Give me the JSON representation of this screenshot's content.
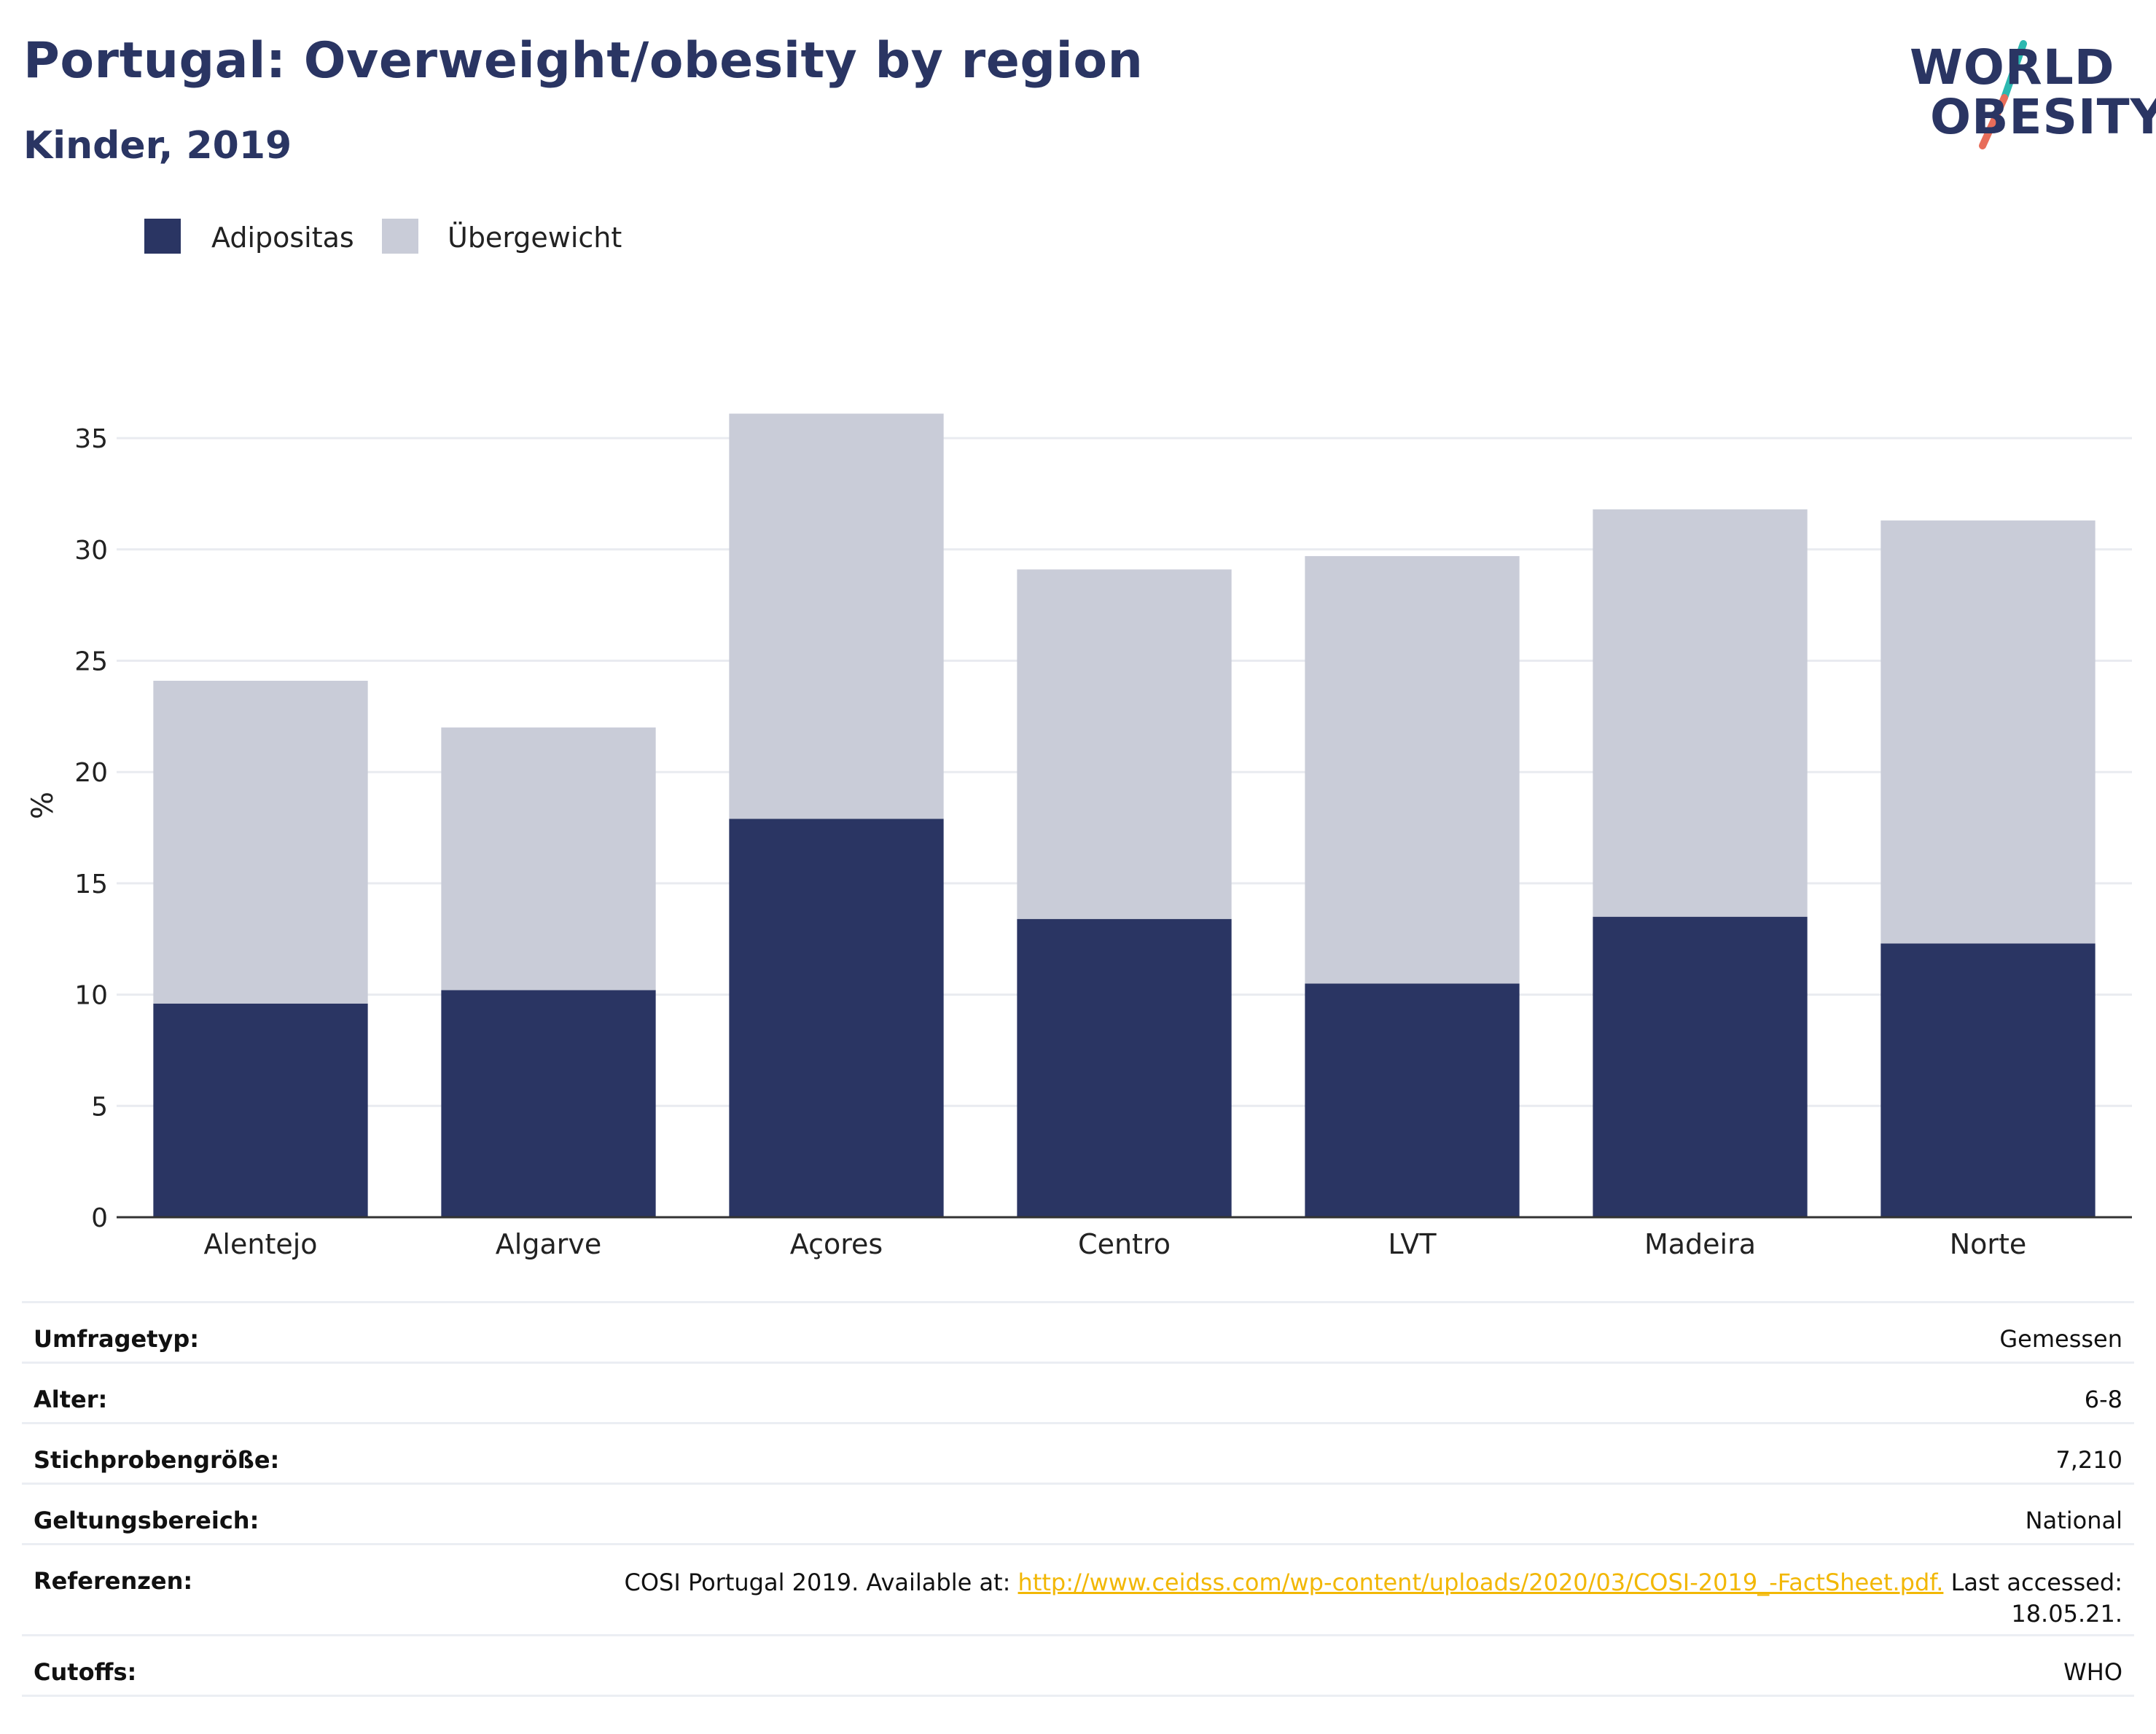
{
  "header": {
    "title": "Portugal: Overweight/obesity by region",
    "subtitle": "Kinder, 2019"
  },
  "logo": {
    "line1": "WORLD",
    "line2": "OBESITY",
    "slash_colors": [
      "#2cb8b0",
      "#e86d5a"
    ]
  },
  "colors": {
    "adipositas": "#2a3563",
    "uebergewicht": "#c9ccd8",
    "grid": "#e9ebf0",
    "axis": "#333333",
    "link": "#f2b705"
  },
  "chart_data": {
    "type": "bar",
    "stacked": true,
    "categories": [
      "Alentejo",
      "Algarve",
      "Açores",
      "Centro",
      "LVT",
      "Madeira",
      "Norte"
    ],
    "series": [
      {
        "name": "Adipositas",
        "values": [
          9.6,
          10.2,
          17.9,
          13.4,
          10.5,
          13.5,
          12.3
        ]
      },
      {
        "name": "Übergewicht",
        "values": [
          14.5,
          11.8,
          18.2,
          15.7,
          19.2,
          18.3,
          19.0
        ]
      }
    ],
    "ylabel": "%",
    "xlabel": "",
    "ylim": [
      0,
      37
    ],
    "yticks": [
      0,
      5,
      10,
      15,
      20,
      25,
      30,
      35
    ],
    "legend": "top-left",
    "grid": true
  },
  "meta": {
    "rows": [
      {
        "label": "Umfragetyp:",
        "value": "Gemessen"
      },
      {
        "label": "Alter:",
        "value": "6-8"
      },
      {
        "label": "Stichprobengröße:",
        "value": "7,210"
      },
      {
        "label": "Geltungsbereich:",
        "value": "National"
      }
    ],
    "references": {
      "label": "Referenzen:",
      "prefix": "COSI Portugal 2019. Available at:",
      "link": "http://www.ceidss.com/wp-content/uploads/2020/03/COSI-2019_-FactSheet.pdf.",
      "suffix": "Last accessed: 18.05.21."
    },
    "cutoffs": {
      "label": "Cutoffs:",
      "value": "WHO"
    }
  }
}
